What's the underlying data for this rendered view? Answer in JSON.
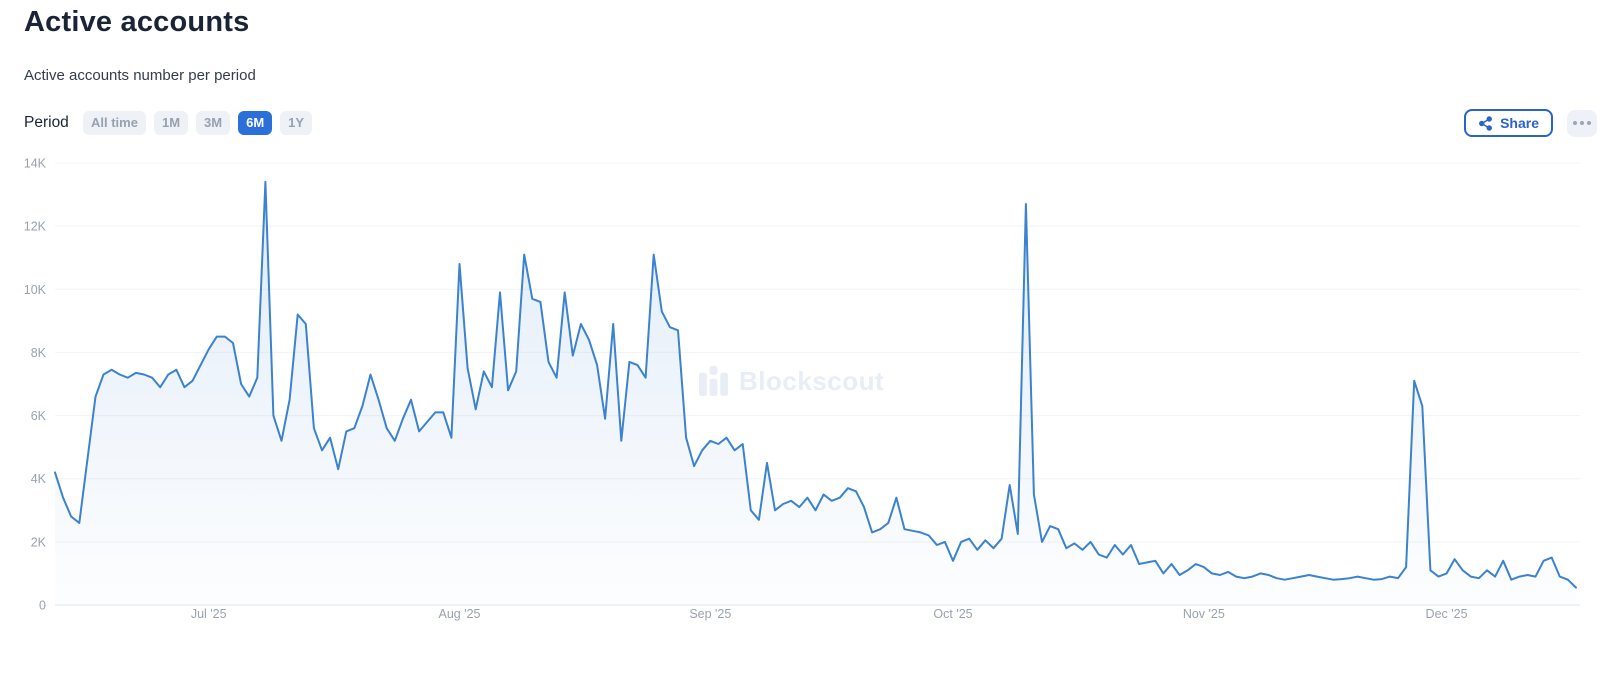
{
  "header": {
    "title": "Active accounts",
    "subtitle": "Active accounts number per period"
  },
  "period": {
    "label": "Period",
    "options": [
      {
        "label": "All time",
        "selected": false
      },
      {
        "label": "1M",
        "selected": false
      },
      {
        "label": "3M",
        "selected": false
      },
      {
        "label": "6M",
        "selected": true
      },
      {
        "label": "1Y",
        "selected": false
      }
    ]
  },
  "actions": {
    "share_label": "Share",
    "more_icon": "ellipsis-icon"
  },
  "watermark": {
    "text": "Blockscout"
  },
  "colors": {
    "accent_blue": "#2b6fd8",
    "share_blue": "#2a63cf",
    "line_blue": "#3b82cf",
    "area_fill_top": "rgba(59,130,207,0.16)",
    "area_fill_bottom": "rgba(59,130,207,0.01)",
    "gridline": "#f2f3f5",
    "axis_line": "#e3e6ea",
    "tick_text": "#9aa2ae",
    "watermark": "#e8edf6"
  },
  "chart_data": {
    "type": "area",
    "title": "Active accounts",
    "series_name": "Active accounts",
    "values_unit": "K",
    "ylim": [
      0,
      14
    ],
    "grid": "horizontal",
    "legend": "none",
    "y_ticks": [
      {
        "label": "0",
        "value": 0
      },
      {
        "label": "2K",
        "value": 2
      },
      {
        "label": "4K",
        "value": 4
      },
      {
        "label": "6K",
        "value": 6
      },
      {
        "label": "8K",
        "value": 8
      },
      {
        "label": "10K",
        "value": 10
      },
      {
        "label": "12K",
        "value": 12
      },
      {
        "label": "14K",
        "value": 14
      }
    ],
    "x_ticks": [
      {
        "label": "Jul '25",
        "index": 19
      },
      {
        "label": "Aug '25",
        "index": 50
      },
      {
        "label": "Sep '25",
        "index": 81
      },
      {
        "label": "Oct '25",
        "index": 111
      },
      {
        "label": "Nov '25",
        "index": 142
      },
      {
        "label": "Dec '25",
        "index": 172
      }
    ],
    "values": [
      4.2,
      3.4,
      2.8,
      2.6,
      4.6,
      6.6,
      7.3,
      7.45,
      7.3,
      7.2,
      7.35,
      7.3,
      7.2,
      6.9,
      7.3,
      7.45,
      6.9,
      7.1,
      7.6,
      8.1,
      8.5,
      8.5,
      8.3,
      7.0,
      6.6,
      7.2,
      13.4,
      6.0,
      5.2,
      6.5,
      9.2,
      8.9,
      5.6,
      4.9,
      5.3,
      4.3,
      5.5,
      5.6,
      6.3,
      7.3,
      6.5,
      5.6,
      5.2,
      5.9,
      6.5,
      5.5,
      5.8,
      6.1,
      6.1,
      5.3,
      10.8,
      7.5,
      6.2,
      7.4,
      6.9,
      9.9,
      6.8,
      7.4,
      11.1,
      9.7,
      9.6,
      7.7,
      7.2,
      9.9,
      7.9,
      8.9,
      8.4,
      7.6,
      5.9,
      8.9,
      5.2,
      7.7,
      7.6,
      7.2,
      11.1,
      9.3,
      8.8,
      8.7,
      5.3,
      4.4,
      4.9,
      5.2,
      5.1,
      5.3,
      4.9,
      5.1,
      3.0,
      2.7,
      4.5,
      3.0,
      3.2,
      3.3,
      3.1,
      3.4,
      3.0,
      3.5,
      3.3,
      3.4,
      3.7,
      3.6,
      3.1,
      2.3,
      2.4,
      2.6,
      3.4,
      2.4,
      2.35,
      2.3,
      2.2,
      1.9,
      2.0,
      1.4,
      2.0,
      2.1,
      1.75,
      2.05,
      1.8,
      2.1,
      3.8,
      2.25,
      12.7,
      3.5,
      2.0,
      2.5,
      2.4,
      1.8,
      1.95,
      1.75,
      2.0,
      1.6,
      1.5,
      1.9,
      1.6,
      1.9,
      1.3,
      1.35,
      1.4,
      1.0,
      1.3,
      0.95,
      1.1,
      1.3,
      1.2,
      1.0,
      0.95,
      1.05,
      0.9,
      0.85,
      0.9,
      1.0,
      0.95,
      0.85,
      0.8,
      0.85,
      0.9,
      0.95,
      0.9,
      0.85,
      0.8,
      0.82,
      0.85,
      0.9,
      0.85,
      0.8,
      0.82,
      0.9,
      0.85,
      1.2,
      7.1,
      6.3,
      1.1,
      0.9,
      1.0,
      1.45,
      1.1,
      0.9,
      0.85,
      1.1,
      0.9,
      1.4,
      0.8,
      0.9,
      0.95,
      0.9,
      1.4,
      1.5,
      0.9,
      0.8,
      0.55
    ]
  }
}
